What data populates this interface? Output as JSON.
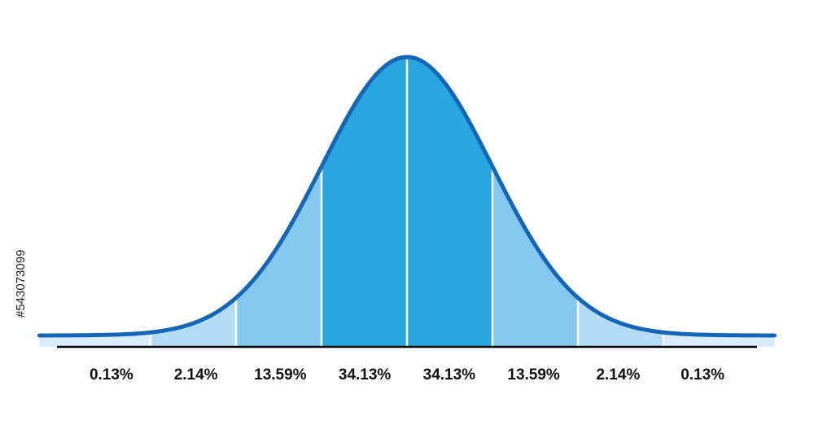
{
  "chart_data": {
    "type": "area",
    "distribution": "normal",
    "x_range_sigma": [
      -4.3,
      4.3
    ],
    "bands": [
      {
        "from": -4.3,
        "to": -3,
        "label": "0.13%",
        "value": 0.13,
        "color": "#d8ecfb"
      },
      {
        "from": -3,
        "to": -2,
        "label": "2.14%",
        "value": 2.14,
        "color": "#b3dcf7"
      },
      {
        "from": -2,
        "to": -1,
        "label": "13.59%",
        "value": 13.59,
        "color": "#84c8ef"
      },
      {
        "from": -1,
        "to": 0,
        "label": "34.13%",
        "value": 34.13,
        "color": "#29a7e1"
      },
      {
        "from": 0,
        "to": 1,
        "label": "34.13%",
        "value": 34.13,
        "color": "#29a7e1"
      },
      {
        "from": 1,
        "to": 2,
        "label": "13.59%",
        "value": 13.59,
        "color": "#84c8ef"
      },
      {
        "from": 2,
        "to": 3,
        "label": "2.14%",
        "value": 2.14,
        "color": "#b3dcf7"
      },
      {
        "from": 3,
        "to": 4.3,
        "label": "0.13%",
        "value": 0.13,
        "color": "#d8ecfb"
      }
    ],
    "curve_color": "#1466b8",
    "divider_color": "#ffffff",
    "axis_color": "#000000",
    "grid": false,
    "legend": "none"
  },
  "side_text": "#543073099"
}
